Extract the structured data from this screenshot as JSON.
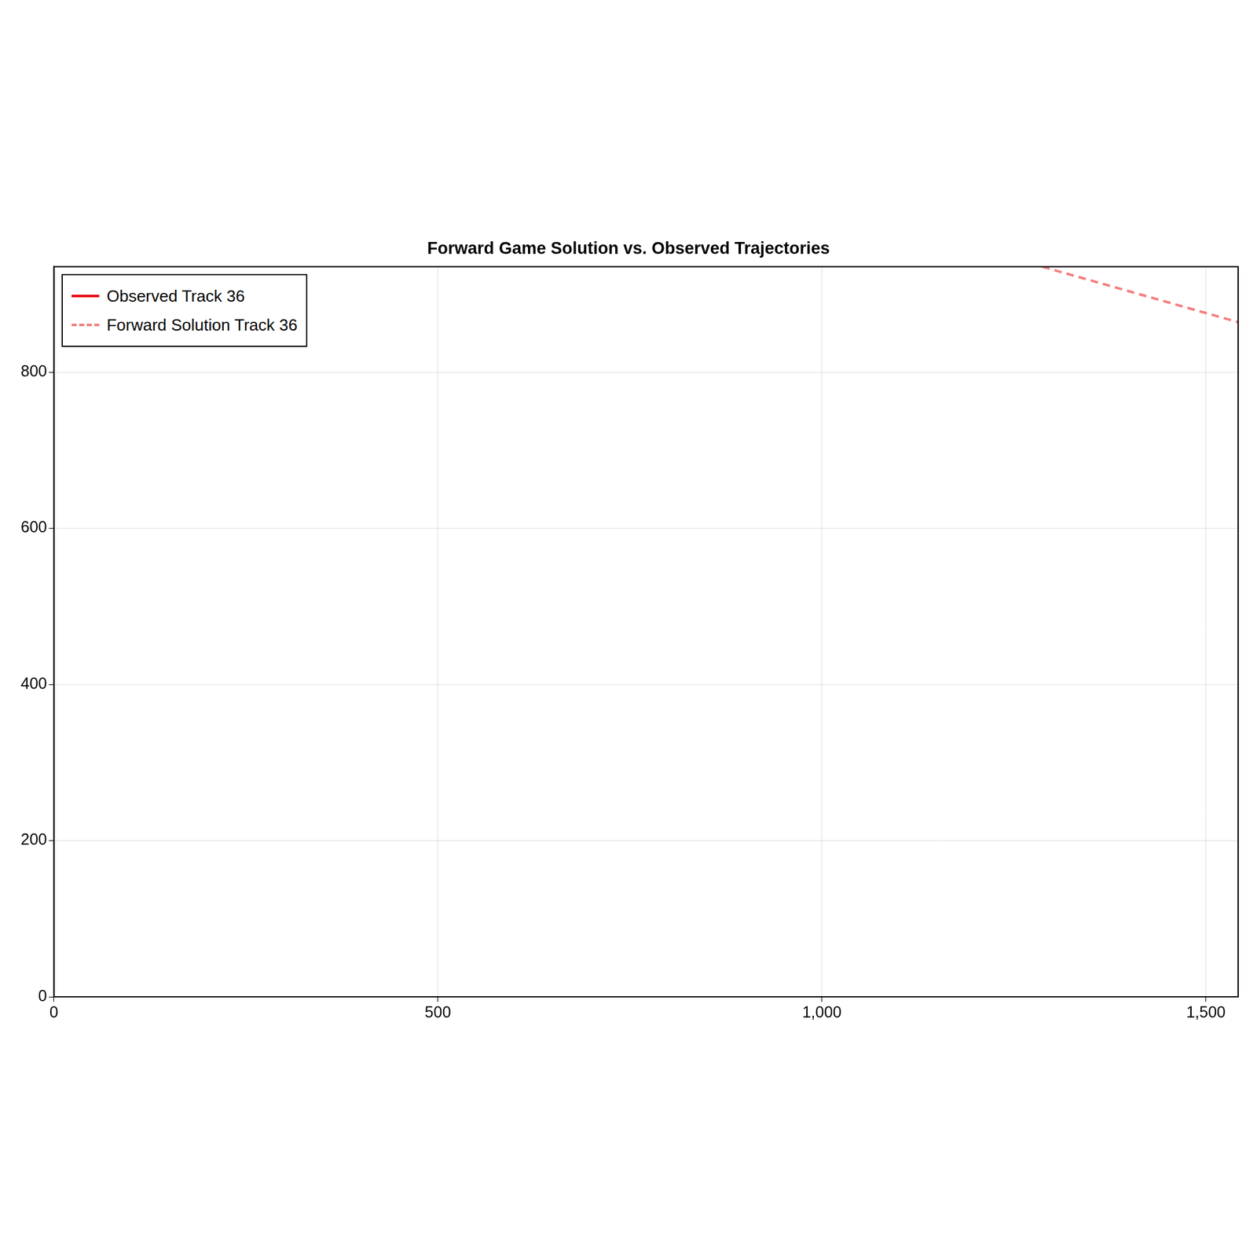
{
  "chart_data": {
    "type": "line",
    "title": "Forward Game Solution vs. Observed Trajectories",
    "xlim": [
      0,
      1542
    ],
    "xticks": [
      0,
      500,
      1000,
      1500
    ],
    "ylim": [
      0,
      935
    ],
    "yticks": [
      0,
      200,
      400,
      600,
      800
    ],
    "grid": true,
    "legend": "upper left",
    "series": [
      {
        "name": "Observed Track 36",
        "color": "#e8000b",
        "line_style": "solid",
        "x": [],
        "y": []
      },
      {
        "name": "Forward Solution Track 36",
        "color": "#f47f7f",
        "line_style": "dashed",
        "x": [
          1287,
          1542
        ],
        "y": [
          935,
          864
        ]
      }
    ]
  }
}
